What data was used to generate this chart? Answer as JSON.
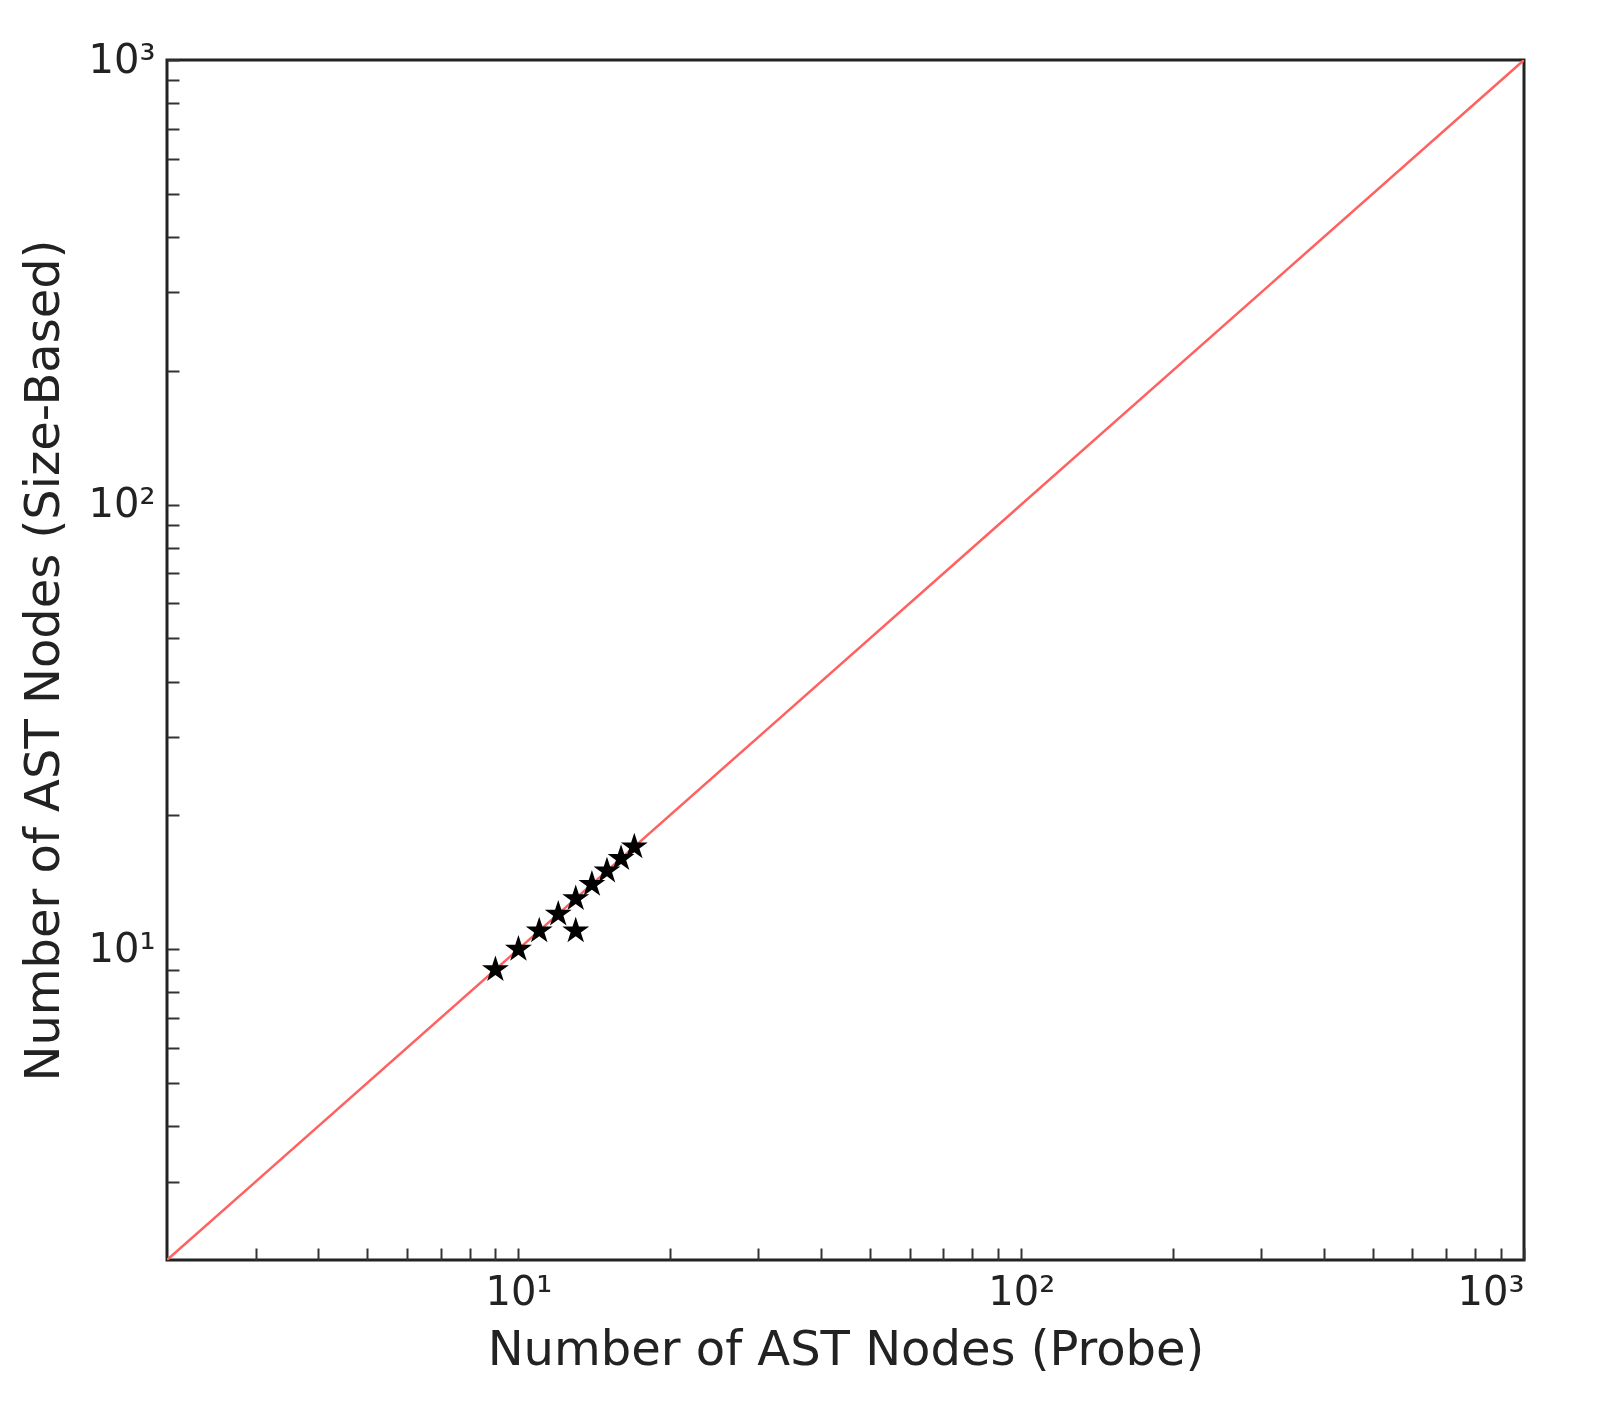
{
  "chart_data": {
    "type": "scatter",
    "xlabel": "Number of AST Nodes (Probe)",
    "ylabel": "Number of AST Nodes (Size-Based)",
    "log": "xy",
    "marker": "star",
    "xlim": [
      2,
      1000
    ],
    "ylim": [
      2,
      1000
    ],
    "xticks": [
      {
        "value": 3,
        "label": null
      },
      {
        "value": 4,
        "label": null
      },
      {
        "value": 5,
        "label": null
      },
      {
        "value": 6,
        "label": null
      },
      {
        "value": 7,
        "label": null
      },
      {
        "value": 8,
        "label": null
      },
      {
        "value": 9,
        "label": null
      },
      {
        "value": 10,
        "label": "10¹"
      },
      {
        "value": 20,
        "label": null
      },
      {
        "value": 30,
        "label": null
      },
      {
        "value": 40,
        "label": null
      },
      {
        "value": 50,
        "label": null
      },
      {
        "value": 60,
        "label": null
      },
      {
        "value": 70,
        "label": null
      },
      {
        "value": 80,
        "label": null
      },
      {
        "value": 90,
        "label": null
      },
      {
        "value": 100,
        "label": "10²"
      },
      {
        "value": 200,
        "label": null
      },
      {
        "value": 300,
        "label": null
      },
      {
        "value": 400,
        "label": null
      },
      {
        "value": 500,
        "label": null
      },
      {
        "value": 600,
        "label": null
      },
      {
        "value": 700,
        "label": null
      },
      {
        "value": 800,
        "label": null
      },
      {
        "value": 900,
        "label": null
      },
      {
        "value": 1000,
        "label": "10³"
      }
    ],
    "yticks": [
      {
        "value": 3,
        "label": null
      },
      {
        "value": 4,
        "label": null
      },
      {
        "value": 5,
        "label": null
      },
      {
        "value": 6,
        "label": null
      },
      {
        "value": 7,
        "label": null
      },
      {
        "value": 8,
        "label": null
      },
      {
        "value": 9,
        "label": null
      },
      {
        "value": 10,
        "label": "10¹"
      },
      {
        "value": 20,
        "label": null
      },
      {
        "value": 30,
        "label": null
      },
      {
        "value": 40,
        "label": null
      },
      {
        "value": 50,
        "label": null
      },
      {
        "value": 60,
        "label": null
      },
      {
        "value": 70,
        "label": null
      },
      {
        "value": 80,
        "label": null
      },
      {
        "value": 90,
        "label": null
      },
      {
        "value": 100,
        "label": "10²"
      },
      {
        "value": 200,
        "label": null
      },
      {
        "value": 300,
        "label": null
      },
      {
        "value": 400,
        "label": null
      },
      {
        "value": 500,
        "label": null
      },
      {
        "value": 600,
        "label": null
      },
      {
        "value": 700,
        "label": null
      },
      {
        "value": 800,
        "label": null
      },
      {
        "value": 900,
        "label": null
      },
      {
        "value": 1000,
        "label": "10³"
      }
    ],
    "series": [
      {
        "type": "line",
        "color": "#ff6060",
        "x": [
          2,
          1000
        ],
        "values": [
          2,
          1000
        ],
        "line_style": "solid",
        "marker": "none"
      },
      {
        "color": "#000000",
        "x": [
          9,
          10,
          11,
          12,
          13,
          13,
          14,
          15,
          16,
          17
        ],
        "values": [
          9,
          10,
          11,
          12,
          11,
          13,
          14,
          15,
          16,
          17
        ]
      }
    ]
  }
}
